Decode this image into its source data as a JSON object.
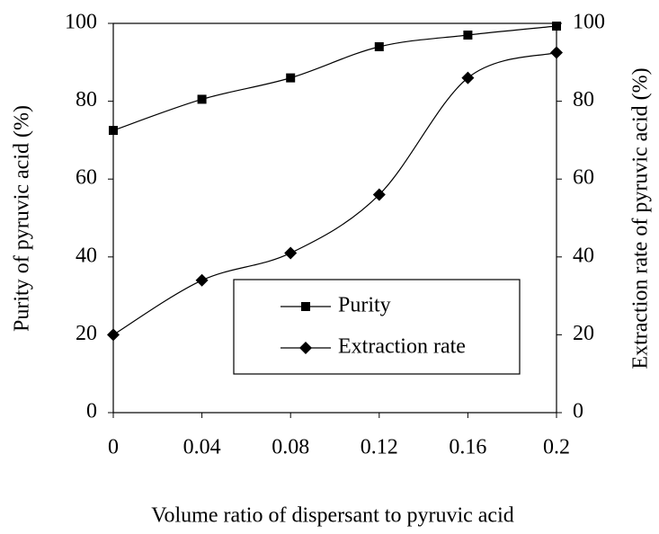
{
  "chart_data": {
    "type": "line",
    "x_label": "Volume ratio of dispersant to pyruvic acid",
    "y_label": "Purity of pyruvic acid (%)",
    "y2_label": "Extraction rate of pyruvic acid (%)",
    "x": [
      0,
      0.04,
      0.08,
      0.12,
      0.16,
      0.2
    ],
    "xlim": [
      0,
      0.2
    ],
    "xticks": [
      0,
      0.04,
      0.08,
      0.12,
      0.16,
      0.2
    ],
    "ylim": [
      0,
      100
    ],
    "yticks": [
      0,
      20,
      40,
      60,
      80,
      100
    ],
    "y2lim": [
      0,
      100
    ],
    "y2ticks": [
      0,
      20,
      40,
      60,
      80,
      100
    ],
    "legend": "lower right",
    "series": [
      {
        "name": "Purity",
        "color": "#000000",
        "marker": "square",
        "values": [
          72.5,
          80.5,
          86,
          94,
          97,
          99.3
        ]
      },
      {
        "name": "Extraction rate",
        "color": "#000000",
        "marker": "diamond",
        "axis": "y2",
        "values": [
          20,
          34,
          41,
          56,
          86,
          92.5
        ]
      }
    ]
  }
}
